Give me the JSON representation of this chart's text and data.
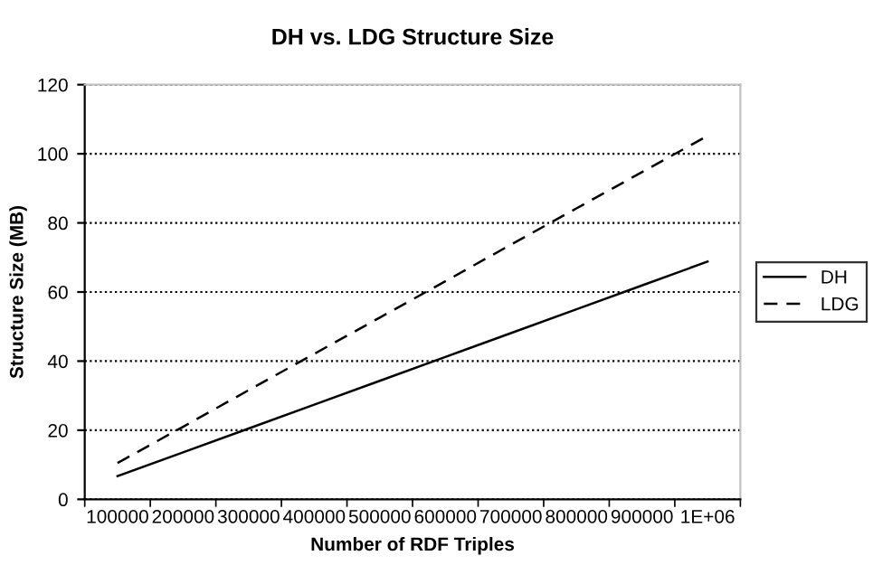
{
  "chart_data": {
    "type": "line",
    "title": "DH vs. LDG Structure Size",
    "xlabel": "Number of RDF Triples",
    "ylabel": "Structure Size (MB)",
    "categories": [
      "100000",
      "200000",
      "300000",
      "400000",
      "500000",
      "600000",
      "700000",
      "800000",
      "900000",
      "1E+06"
    ],
    "series": [
      {
        "name": "DH",
        "color": "#000000",
        "line_style": "solid",
        "values": [
          6.7,
          13.6,
          20.5,
          27.4,
          34.3,
          41.2,
          48.1,
          55,
          61.9,
          68.8
        ]
      },
      {
        "name": "LDG",
        "color": "#000000",
        "line_style": "dashed",
        "values": [
          10.5,
          21,
          31.6,
          42.1,
          52.6,
          63.1,
          73.7,
          84.2,
          94.7,
          105.2
        ]
      }
    ],
    "ylim": [
      0,
      120
    ],
    "yticks": [
      0,
      20,
      40,
      60,
      80,
      100,
      120
    ],
    "grid": "y",
    "legend": "right",
    "marker": "none"
  }
}
